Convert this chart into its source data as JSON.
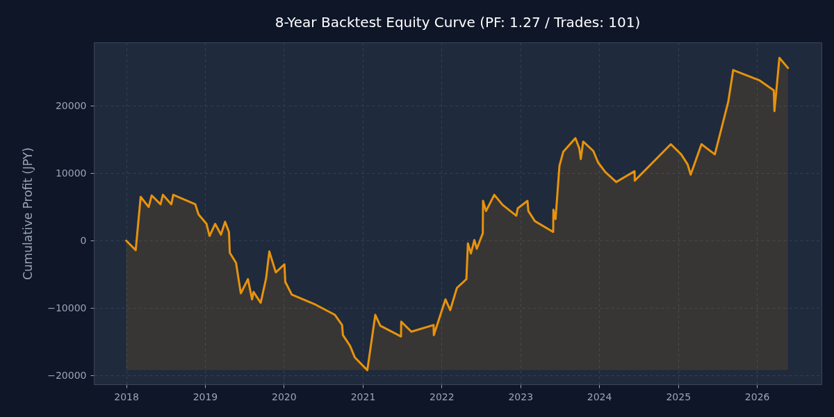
{
  "chart_data": {
    "type": "line",
    "title": "8-Year Backtest Equity Curve (PF: 1.27 / Trades: 101)",
    "ylabel": "Cumulative Profit (JPY)",
    "x": [
      "2018-01-01",
      "2018-02-14",
      "2018-03-09",
      "2018-04-15",
      "2018-04-29",
      "2018-06-09",
      "2018-06-20",
      "2018-07-29",
      "2018-08-07",
      "2018-11-17",
      "2018-12-02",
      "2019-01-08",
      "2019-01-22",
      "2019-02-17",
      "2019-03-16",
      "2019-04-04",
      "2019-04-22",
      "2019-04-26",
      "2019-05-25",
      "2019-06-05",
      "2019-06-16",
      "2019-07-19",
      "2019-08-07",
      "2019-08-14",
      "2019-09-16",
      "2019-10-11",
      "2019-10-26",
      "2019-11-25",
      "2020-01-04",
      "2020-01-08",
      "2020-02-07",
      "2020-05-28",
      "2020-08-25",
      "2020-09-27",
      "2020-10-01",
      "2020-11-03",
      "2020-11-25",
      "2021-01-22",
      "2021-02-28",
      "2021-03-23",
      "2021-06-27",
      "2021-06-28",
      "2021-08-14",
      "2021-11-25",
      "2021-11-26",
      "2022-01-19",
      "2022-02-10",
      "2022-03-13",
      "2022-04-26",
      "2022-05-03",
      "2022-05-17",
      "2022-06-02",
      "2022-06-13",
      "2022-07-11",
      "2022-07-12",
      "2022-07-26",
      "2022-09-02",
      "2022-10-11",
      "2022-12-13",
      "2022-12-20",
      "2023-02-03",
      "2023-02-07",
      "2023-03-09",
      "2023-06-02",
      "2023-06-03",
      "2023-06-13",
      "2023-07-01",
      "2023-07-19",
      "2023-09-13",
      "2023-10-01",
      "2023-10-08",
      "2023-10-19",
      "2023-12-05",
      "2023-12-27",
      "2024-01-29",
      "2024-03-20",
      "2024-06-13",
      "2024-06-14",
      "2024-11-28",
      "2025-01-15",
      "2025-02-14",
      "2025-02-28",
      "2025-04-19",
      "2025-06-20",
      "2025-08-21",
      "2025-09-13",
      "2026-01-11",
      "2026-03-20",
      "2026-03-23",
      "2026-04-15",
      "2026-05-25"
    ],
    "series": [
      {
        "color": "#e8930c",
        "values": [
          0,
          -1400,
          6500,
          5000,
          6700,
          5400,
          6800,
          5400,
          6800,
          5400,
          3900,
          2500,
          700,
          2500,
          900,
          2800,
          1300,
          -1800,
          -3300,
          -5600,
          -7800,
          -5700,
          -8700,
          -7600,
          -9200,
          -5600,
          -1600,
          -4700,
          -3500,
          -6100,
          -8000,
          -9500,
          -11000,
          -12500,
          -14000,
          -15600,
          -17300,
          -19200,
          -11000,
          -12600,
          -14200,
          -12000,
          -13500,
          -12500,
          -14000,
          -8700,
          -10300,
          -7000,
          -5700,
          -400,
          -1900,
          100,
          -1200,
          1100,
          5900,
          4400,
          6800,
          5300,
          3700,
          4800,
          5900,
          4400,
          2900,
          1300,
          4600,
          3200,
          11100,
          13200,
          15200,
          13700,
          12100,
          14700,
          13300,
          11600,
          10200,
          8700,
          10300,
          8900,
          14300,
          12800,
          11300,
          9800,
          14300,
          12800,
          20600,
          25300,
          23800,
          22300,
          19200,
          27100,
          25600
        ],
        "lower": [
          -19200,
          -19200,
          -19200,
          -19200,
          -19200,
          -19200,
          -19200,
          -19200,
          -19200,
          -19200,
          -19200,
          -19200,
          -19200,
          -19200,
          -19200,
          -19200,
          -19200,
          -19200,
          -19200,
          -19200,
          -19200,
          -19200,
          -19200,
          -19200,
          -19200,
          -19200,
          -19200,
          -19200,
          -19200,
          -19200,
          -19200,
          -19200,
          -19200,
          -19200,
          -19200,
          -19200,
          -19200,
          -19200,
          -19200,
          -19200,
          -19200,
          -19200,
          -19200,
          -19200,
          -19200,
          -19200,
          -19200,
          -19200,
          -19200,
          -19200,
          -19200,
          -19200,
          -19200,
          -19200,
          -19200,
          -19200,
          -19200,
          -19200,
          -19200,
          -19200,
          -19200,
          -19200,
          -19200,
          -19200,
          -19200,
          -19200,
          -19200,
          -19200,
          -19200,
          -19200,
          -19200,
          -19200,
          -19200,
          -19200,
          -19200,
          -19200,
          -19200,
          -19200,
          -19200,
          -19200,
          -19200,
          -19200,
          -19200,
          -19200,
          -19200,
          -19200,
          -19200,
          -19200,
          -19200,
          -19200,
          -19200
        ],
        "upper": [
          0,
          -1400,
          6500,
          5000,
          6700,
          5400,
          6800,
          5400,
          6800,
          5400,
          3900,
          2500,
          700,
          2500,
          900,
          2800,
          1300,
          -1800,
          -3300,
          -5600,
          -7800,
          -5700,
          -8700,
          -7600,
          -9200,
          -5600,
          -1600,
          -4700,
          -3500,
          -6100,
          -8000,
          -9500,
          -11000,
          -12500,
          -14000,
          -15600,
          -17300,
          -19200,
          -11000,
          -12600,
          -14200,
          -12000,
          -13500,
          -12500,
          -14000,
          -8700,
          -10300,
          -7000,
          -5700,
          -400,
          -1900,
          100,
          -1200,
          1100,
          5900,
          4400,
          6800,
          5300,
          3700,
          4800,
          5900,
          4400,
          2900,
          1300,
          4600,
          3200,
          11100,
          13200,
          15200,
          13700,
          12100,
          14700,
          13300,
          11600,
          10200,
          8700,
          10300,
          8900,
          14300,
          12800,
          11300,
          9800,
          14300,
          12800,
          20600,
          25300,
          23800,
          22300,
          19200,
          27100,
          25600
        ]
      }
    ],
    "xlim": [
      "2017-08-04",
      "2026-10-27"
    ],
    "xticks": [
      "2018",
      "2019",
      "2020",
      "2021",
      "2022",
      "2023",
      "2024",
      "2025",
      "2026"
    ],
    "ylim": [
      -21300,
      29400
    ],
    "yticks": [
      -20000,
      -10000,
      0,
      10000,
      20000
    ],
    "grid": true,
    "line_style": "solid"
  }
}
